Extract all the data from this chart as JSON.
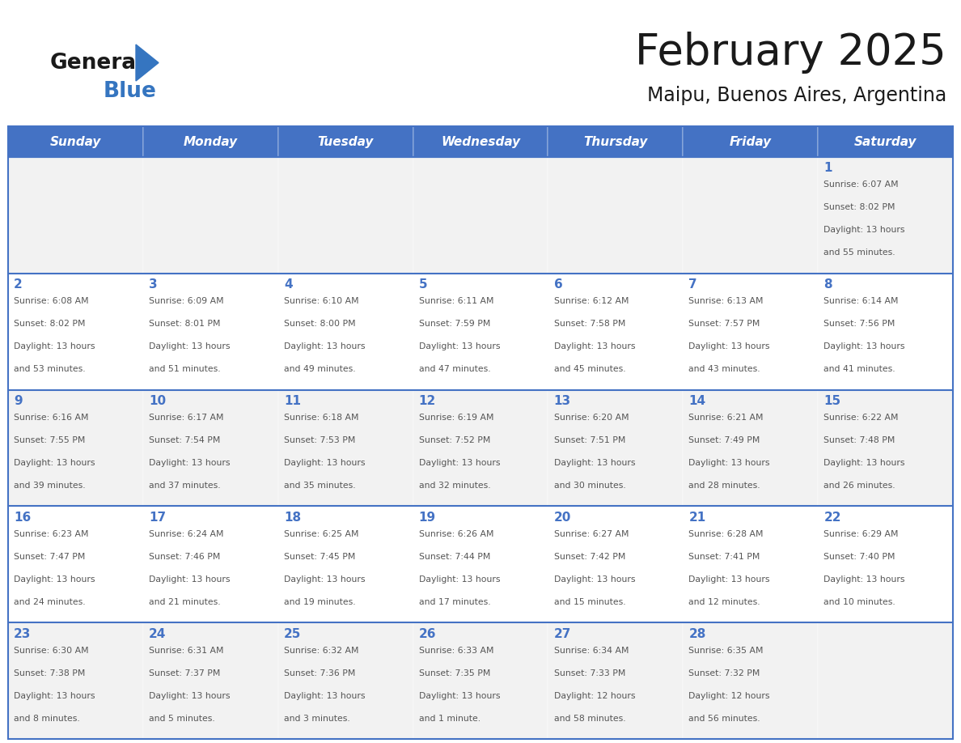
{
  "title": "February 2025",
  "subtitle": "Maipu, Buenos Aires, Argentina",
  "days_of_week": [
    "Sunday",
    "Monday",
    "Tuesday",
    "Wednesday",
    "Thursday",
    "Friday",
    "Saturday"
  ],
  "header_bg": "#4472C4",
  "header_text": "#FFFFFF",
  "cell_bg_odd": "#F2F2F2",
  "cell_bg_even": "#FFFFFF",
  "day_num_color": "#4472C4",
  "cell_text_color": "#555555",
  "border_color": "#4472C4",
  "title_color": "#1a1a1a",
  "subtitle_color": "#1a1a1a",
  "logo_general_color": "#1a1a1a",
  "logo_blue_color": "#3575C0",
  "calendar_data": [
    [
      null,
      null,
      null,
      null,
      null,
      null,
      {
        "day": 1,
        "sunrise": "6:07 AM",
        "sunset": "8:02 PM",
        "daylight": "13 hours and 55 minutes"
      }
    ],
    [
      {
        "day": 2,
        "sunrise": "6:08 AM",
        "sunset": "8:02 PM",
        "daylight": "13 hours and 53 minutes"
      },
      {
        "day": 3,
        "sunrise": "6:09 AM",
        "sunset": "8:01 PM",
        "daylight": "13 hours and 51 minutes"
      },
      {
        "day": 4,
        "sunrise": "6:10 AM",
        "sunset": "8:00 PM",
        "daylight": "13 hours and 49 minutes"
      },
      {
        "day": 5,
        "sunrise": "6:11 AM",
        "sunset": "7:59 PM",
        "daylight": "13 hours and 47 minutes"
      },
      {
        "day": 6,
        "sunrise": "6:12 AM",
        "sunset": "7:58 PM",
        "daylight": "13 hours and 45 minutes"
      },
      {
        "day": 7,
        "sunrise": "6:13 AM",
        "sunset": "7:57 PM",
        "daylight": "13 hours and 43 minutes"
      },
      {
        "day": 8,
        "sunrise": "6:14 AM",
        "sunset": "7:56 PM",
        "daylight": "13 hours and 41 minutes"
      }
    ],
    [
      {
        "day": 9,
        "sunrise": "6:16 AM",
        "sunset": "7:55 PM",
        "daylight": "13 hours and 39 minutes"
      },
      {
        "day": 10,
        "sunrise": "6:17 AM",
        "sunset": "7:54 PM",
        "daylight": "13 hours and 37 minutes"
      },
      {
        "day": 11,
        "sunrise": "6:18 AM",
        "sunset": "7:53 PM",
        "daylight": "13 hours and 35 minutes"
      },
      {
        "day": 12,
        "sunrise": "6:19 AM",
        "sunset": "7:52 PM",
        "daylight": "13 hours and 32 minutes"
      },
      {
        "day": 13,
        "sunrise": "6:20 AM",
        "sunset": "7:51 PM",
        "daylight": "13 hours and 30 minutes"
      },
      {
        "day": 14,
        "sunrise": "6:21 AM",
        "sunset": "7:49 PM",
        "daylight": "13 hours and 28 minutes"
      },
      {
        "day": 15,
        "sunrise": "6:22 AM",
        "sunset": "7:48 PM",
        "daylight": "13 hours and 26 minutes"
      }
    ],
    [
      {
        "day": 16,
        "sunrise": "6:23 AM",
        "sunset": "7:47 PM",
        "daylight": "13 hours and 24 minutes"
      },
      {
        "day": 17,
        "sunrise": "6:24 AM",
        "sunset": "7:46 PM",
        "daylight": "13 hours and 21 minutes"
      },
      {
        "day": 18,
        "sunrise": "6:25 AM",
        "sunset": "7:45 PM",
        "daylight": "13 hours and 19 minutes"
      },
      {
        "day": 19,
        "sunrise": "6:26 AM",
        "sunset": "7:44 PM",
        "daylight": "13 hours and 17 minutes"
      },
      {
        "day": 20,
        "sunrise": "6:27 AM",
        "sunset": "7:42 PM",
        "daylight": "13 hours and 15 minutes"
      },
      {
        "day": 21,
        "sunrise": "6:28 AM",
        "sunset": "7:41 PM",
        "daylight": "13 hours and 12 minutes"
      },
      {
        "day": 22,
        "sunrise": "6:29 AM",
        "sunset": "7:40 PM",
        "daylight": "13 hours and 10 minutes"
      }
    ],
    [
      {
        "day": 23,
        "sunrise": "6:30 AM",
        "sunset": "7:38 PM",
        "daylight": "13 hours and 8 minutes"
      },
      {
        "day": 24,
        "sunrise": "6:31 AM",
        "sunset": "7:37 PM",
        "daylight": "13 hours and 5 minutes"
      },
      {
        "day": 25,
        "sunrise": "6:32 AM",
        "sunset": "7:36 PM",
        "daylight": "13 hours and 3 minutes"
      },
      {
        "day": 26,
        "sunrise": "6:33 AM",
        "sunset": "7:35 PM",
        "daylight": "13 hours and 1 minute"
      },
      {
        "day": 27,
        "sunrise": "6:34 AM",
        "sunset": "7:33 PM",
        "daylight": "12 hours and 58 minutes"
      },
      {
        "day": 28,
        "sunrise": "6:35 AM",
        "sunset": "7:32 PM",
        "daylight": "12 hours and 56 minutes"
      },
      null
    ]
  ]
}
